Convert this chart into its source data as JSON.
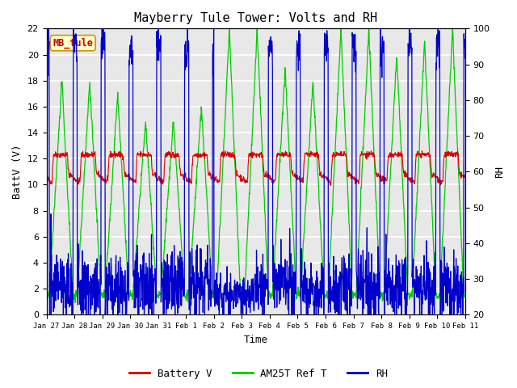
{
  "title": "Mayberry Tule Tower: Volts and RH",
  "xlabel": "Time",
  "ylabel_left": "BattV (V)",
  "ylabel_right": "RH",
  "station_label": "MB_tule",
  "xlim": [
    0,
    15
  ],
  "ylim_left": [
    0,
    22
  ],
  "ylim_right": [
    20,
    100
  ],
  "xtick_labels": [
    "Jan 27",
    "Jan 28",
    "Jan 29",
    "Jan 30",
    "Jan 31",
    "Feb 1",
    "Feb 2",
    "Feb 3",
    "Feb 4",
    "Feb 5",
    "Feb 6",
    "Feb 7",
    "Feb 8",
    "Feb 9",
    "Feb 10",
    "Feb 11"
  ],
  "xtick_positions": [
    0,
    1,
    2,
    3,
    4,
    5,
    6,
    7,
    8,
    9,
    10,
    11,
    12,
    13,
    14,
    15
  ],
  "ytick_left": [
    0,
    2,
    4,
    6,
    8,
    10,
    12,
    14,
    16,
    18,
    20,
    22
  ],
  "ytick_right": [
    20,
    30,
    40,
    50,
    60,
    70,
    80,
    90,
    100
  ],
  "color_battv": "#dd0000",
  "color_am25t": "#00cc00",
  "color_rh": "#0000cc",
  "bg_color": "#e8e8e8",
  "legend_labels": [
    "Battery V",
    "AM25T Ref T",
    "RH"
  ],
  "figsize": [
    6.4,
    4.8
  ],
  "dpi": 100
}
